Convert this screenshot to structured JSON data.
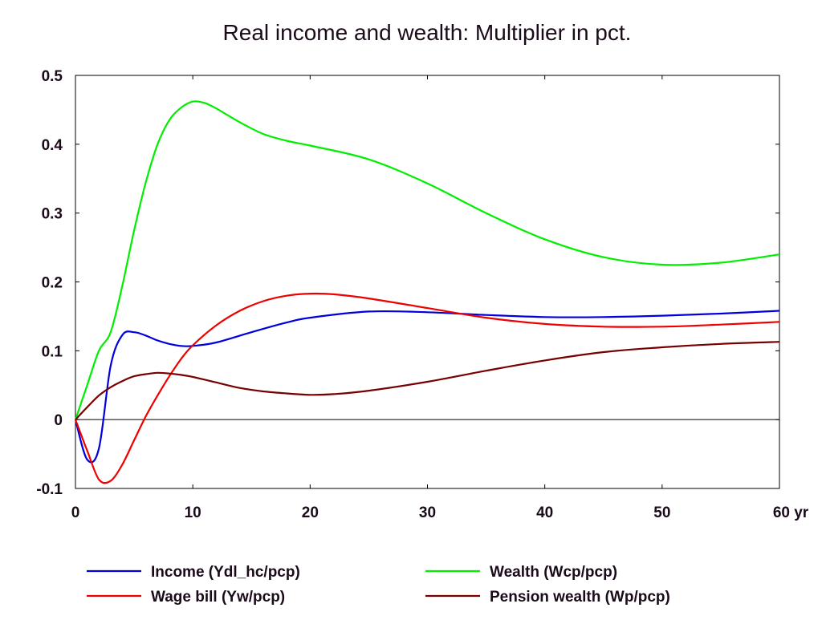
{
  "chart_data": {
    "type": "line",
    "title": "Real income and wealth: Multiplier in pct.",
    "xlabel": "",
    "ylabel": "",
    "x_unit": "yr",
    "xlim": [
      0,
      60
    ],
    "ylim": [
      -0.1,
      0.5
    ],
    "x_ticks": [
      0,
      10,
      20,
      30,
      40,
      50,
      60
    ],
    "y_ticks": [
      -0.1,
      0,
      0.1,
      0.2,
      0.3,
      0.4,
      0.5
    ],
    "x_tick_labels": [
      "0",
      "10",
      "20",
      "30",
      "40",
      "50",
      "60 yr"
    ],
    "y_tick_labels": [
      "-0.1",
      "0",
      "0.1",
      "0.2",
      "0.3",
      "0.4",
      "0.5"
    ],
    "grid": false,
    "zero_line": true,
    "legend_position": "bottom",
    "series": [
      {
        "name": "Income (Ydl_hc/pcp)",
        "color": "#0000dd",
        "x": [
          0,
          1,
          2,
          3,
          4,
          5,
          6,
          7,
          8,
          9,
          10,
          12,
          15,
          18,
          20,
          25,
          30,
          35,
          40,
          45,
          50,
          55,
          60
        ],
        "y": [
          0,
          -0.058,
          -0.042,
          0.078,
          0.123,
          0.127,
          0.122,
          0.115,
          0.11,
          0.107,
          0.107,
          0.112,
          0.127,
          0.141,
          0.148,
          0.157,
          0.156,
          0.152,
          0.149,
          0.149,
          0.151,
          0.154,
          0.158
        ]
      },
      {
        "name": "Wealth (Wcp/pcp)",
        "color": "#00ee00",
        "x": [
          0,
          1,
          2,
          3,
          4,
          5,
          6,
          7,
          8,
          9,
          10,
          11,
          12,
          14,
          16,
          18,
          20,
          25,
          30,
          35,
          40,
          45,
          50,
          55,
          60
        ],
        "y": [
          0,
          0.05,
          0.1,
          0.127,
          0.195,
          0.275,
          0.345,
          0.4,
          0.435,
          0.453,
          0.462,
          0.46,
          0.452,
          0.432,
          0.415,
          0.405,
          0.398,
          0.378,
          0.343,
          0.3,
          0.262,
          0.236,
          0.225,
          0.228,
          0.24
        ]
      },
      {
        "name": "Wage bill (Yw/pcp)",
        "color": "#ee0000",
        "x": [
          0,
          1,
          2,
          3,
          4,
          5,
          6,
          7,
          8,
          9,
          10,
          12,
          14,
          16,
          18,
          20,
          22,
          25,
          30,
          35,
          40,
          45,
          50,
          55,
          60
        ],
        "y": [
          0,
          -0.045,
          -0.087,
          -0.089,
          -0.065,
          -0.03,
          0.005,
          0.035,
          0.063,
          0.088,
          0.108,
          0.137,
          0.158,
          0.172,
          0.18,
          0.183,
          0.182,
          0.176,
          0.162,
          0.148,
          0.139,
          0.135,
          0.135,
          0.138,
          0.142
        ]
      },
      {
        "name": "Pension wealth (Wp/pcp)",
        "color": "#770000",
        "x": [
          0,
          1,
          2,
          3,
          4,
          5,
          6,
          7,
          8,
          9,
          10,
          12,
          14,
          16,
          18,
          20,
          22,
          25,
          30,
          35,
          40,
          45,
          50,
          55,
          60
        ],
        "y": [
          0,
          0.018,
          0.035,
          0.047,
          0.056,
          0.063,
          0.066,
          0.068,
          0.067,
          0.065,
          0.062,
          0.054,
          0.046,
          0.041,
          0.038,
          0.036,
          0.037,
          0.042,
          0.055,
          0.071,
          0.086,
          0.098,
          0.105,
          0.11,
          0.113
        ]
      }
    ]
  }
}
